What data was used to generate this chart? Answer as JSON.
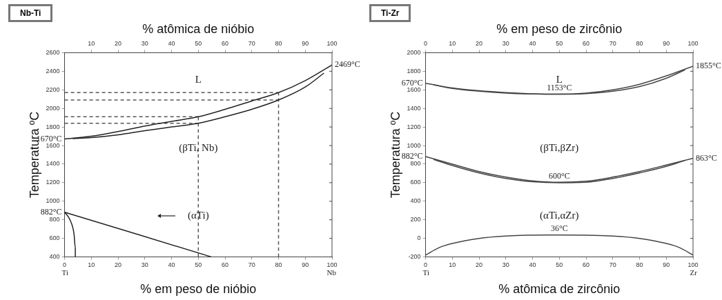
{
  "chart_data": [
    {
      "type": "line",
      "title": "Nb-Ti",
      "xlabel": "% em peso de nióbio",
      "x2label": "% atômica de nióbio",
      "ylabel": "Temperatura ºC",
      "xlim": [
        0,
        100
      ],
      "xticks": [
        0,
        10,
        20,
        30,
        40,
        50,
        60,
        70,
        80,
        90,
        100
      ],
      "x2lim": [
        0,
        100
      ],
      "x2ticks": [
        10,
        20,
        30,
        40,
        50,
        60,
        70,
        80,
        90,
        100
      ],
      "ylim": [
        400,
        2600
      ],
      "yticks": [
        400,
        600,
        800,
        1000,
        1200,
        1400,
        1600,
        1800,
        2000,
        2200,
        2400,
        2600
      ],
      "grid": false,
      "legend": false,
      "marker": "none",
      "series": [
        {
          "color": "#222222",
          "x": [
            0,
            10,
            20,
            30,
            40,
            50,
            60,
            70,
            80,
            90,
            100
          ],
          "values": [
            1670,
            1700,
            1750,
            1810,
            1860,
            1910,
            1990,
            2080,
            2170,
            2300,
            2469
          ]
        },
        {
          "color": "#222222",
          "x": [
            3,
            10,
            20,
            30,
            40,
            50,
            60,
            70,
            80,
            90,
            97
          ],
          "values": [
            1675,
            1685,
            1715,
            1760,
            1800,
            1840,
            1910,
            1990,
            2090,
            2230,
            2380
          ]
        },
        {
          "color": "#222222",
          "x": [
            0,
            55
          ],
          "values": [
            882,
            400
          ]
        },
        {
          "color": "#222222",
          "x": [
            0,
            2,
            3.5,
            4,
            4
          ],
          "values": [
            882,
            800,
            650,
            500,
            400
          ]
        },
        {
          "color": "#555555",
          "line_style": "dashed",
          "x": [
            50,
            50
          ],
          "values": [
            400,
            1910
          ]
        },
        {
          "color": "#555555",
          "line_style": "dashed",
          "x": [
            80,
            80
          ],
          "values": [
            400,
            2170
          ]
        },
        {
          "color": "#555555",
          "line_style": "dashed",
          "x": [
            0,
            80
          ],
          "values": [
            2170,
            2170
          ]
        },
        {
          "color": "#555555",
          "line_style": "dashed",
          "x": [
            0,
            80
          ],
          "values": [
            2090,
            2090
          ]
        },
        {
          "color": "#555555",
          "line_style": "dashed",
          "x": [
            0,
            50
          ],
          "values": [
            1910,
            1910
          ]
        },
        {
          "color": "#555555",
          "line_style": "dashed",
          "x": [
            0,
            50
          ],
          "values": [
            1840,
            1840
          ]
        }
      ],
      "annotations": [
        {
          "text": "2469°C",
          "x": 100,
          "y": 2469
        },
        {
          "text": "1670°C",
          "x": 0,
          "y": 1670
        },
        {
          "text": "882°C",
          "x": 0,
          "y": 882
        },
        "L",
        "(βTi, Nb)",
        "(αTi)",
        "Ti",
        "Nb"
      ]
    },
    {
      "type": "line",
      "title": "Ti-Zr",
      "xlabel": "% atômica de zircônio",
      "x2label": "% em peso de zircônio",
      "ylabel": "Temperatura ºC",
      "xlim": [
        0,
        100
      ],
      "xticks": [
        0,
        10,
        20,
        30,
        40,
        50,
        60,
        70,
        80,
        90,
        100
      ],
      "x2lim": [
        0,
        100
      ],
      "x2ticks": [
        0,
        10,
        20,
        30,
        40,
        50,
        60,
        70,
        80,
        90,
        100
      ],
      "ylim": [
        -200,
        2000
      ],
      "yticks": [
        -200,
        0,
        200,
        400,
        600,
        800,
        1000,
        1200,
        1400,
        1600,
        1800,
        2000
      ],
      "grid": false,
      "legend": false,
      "marker": "none",
      "series": [
        {
          "color": "#444444",
          "x": [
            0,
            10,
            20,
            30,
            40,
            50,
            60,
            70,
            80,
            90,
            100
          ],
          "values": [
            1670,
            1620,
            1590,
            1570,
            1557,
            1553,
            1565,
            1600,
            1660,
            1750,
            1855
          ]
        },
        {
          "color": "#444444",
          "x": [
            3,
            10,
            20,
            30,
            40,
            50,
            60,
            70,
            80,
            90,
            97
          ],
          "values": [
            1655,
            1615,
            1585,
            1565,
            1555,
            1553,
            1560,
            1585,
            1635,
            1725,
            1815
          ]
        },
        {
          "color": "#444444",
          "x": [
            0,
            10,
            20,
            30,
            40,
            50,
            60,
            70,
            80,
            90,
            100
          ],
          "values": [
            882,
            800,
            720,
            660,
            620,
            605,
            615,
            660,
            720,
            790,
            863
          ]
        },
        {
          "color": "#444444",
          "x": [
            3,
            10,
            20,
            30,
            40,
            50,
            60,
            70,
            80,
            90,
            97
          ],
          "values": [
            850,
            785,
            705,
            645,
            610,
            600,
            605,
            645,
            705,
            775,
            840
          ]
        },
        {
          "color": "#444444",
          "x": [
            0,
            5,
            10,
            20,
            30,
            40,
            50,
            60,
            70,
            80,
            90,
            95,
            100
          ],
          "values": [
            -180,
            -100,
            -55,
            0,
            25,
            35,
            36,
            35,
            25,
            0,
            -55,
            -100,
            -180
          ]
        }
      ],
      "annotations": [
        {
          "text": "670°C",
          "x": 0,
          "y": 1670
        },
        {
          "text": "1855°C",
          "x": 100,
          "y": 1855
        },
        {
          "text": "882°C",
          "x": 0,
          "y": 882
        },
        {
          "text": "863°C",
          "x": 100,
          "y": 863
        },
        {
          "text": "1153°C",
          "x": 50,
          "y": 1553
        },
        {
          "text": "600°C",
          "x": 50,
          "y": 600
        },
        {
          "text": "36°C",
          "x": 50,
          "y": 36
        },
        "L",
        "(βTi,βZr)",
        "(αTi,αZr)",
        "Ti",
        "Zr"
      ]
    }
  ]
}
